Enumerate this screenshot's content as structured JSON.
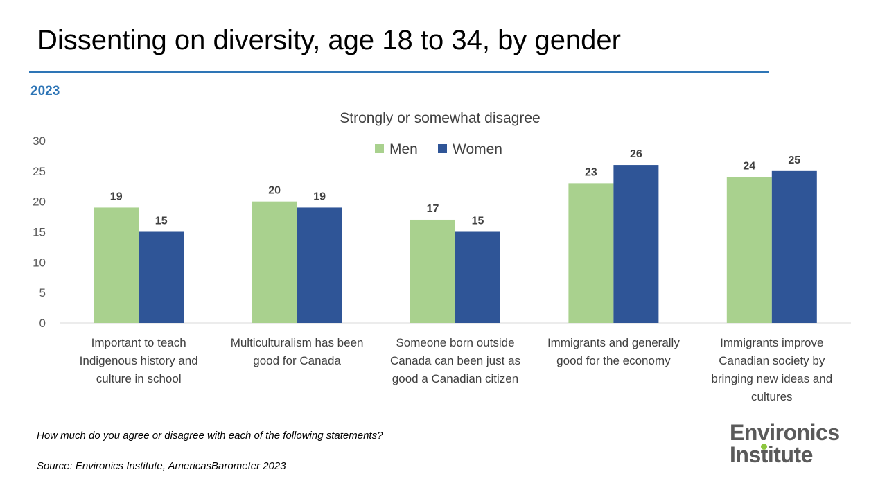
{
  "slide": {
    "title": "Dissenting on diversity, age 18 to 34, by gender",
    "year": "2023",
    "question": "How much do you agree or disagree with each of the following statements?",
    "source": "Source: Environics Institute, AmericasBarometer 2023"
  },
  "logo": {
    "line1": "Environics",
    "line2": "Institute",
    "dot_colors": [
      "#8dc63f",
      "#29abe2",
      "#f7941d"
    ]
  },
  "chart_data": {
    "type": "bar",
    "title": "Strongly or somewhat disagree",
    "categories": [
      [
        "Important to teach",
        "Indigenous history and",
        "culture in school"
      ],
      [
        "Multiculturalism has been",
        "good for Canada"
      ],
      [
        "Someone born outside",
        "Canada can been just as",
        "good a Canadian citizen"
      ],
      [
        "Immigrants and generally",
        "good for the economy"
      ],
      [
        "Immigrants improve",
        "Canadian society by",
        "bringing new ideas and",
        "cultures"
      ]
    ],
    "series": [
      {
        "name": "Men",
        "color": "#a9d18e",
        "values": [
          19,
          20,
          17,
          23,
          24
        ]
      },
      {
        "name": "Women",
        "color": "#2f5597",
        "values": [
          15,
          19,
          15,
          26,
          25
        ]
      }
    ],
    "ylim": [
      0,
      30
    ],
    "yticks": [
      "0",
      "5",
      "10",
      "15",
      "20",
      "25",
      "30"
    ],
    "grid": false,
    "legend_position": "top"
  }
}
